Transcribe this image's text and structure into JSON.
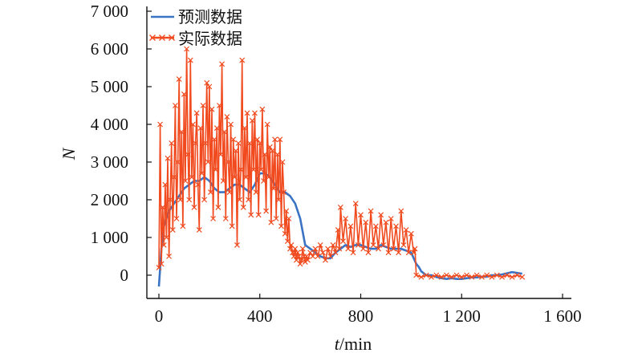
{
  "chart_data": {
    "type": "line",
    "title": "",
    "xlabel": {
      "var": "t",
      "unit": "/min"
    },
    "ylabel": "N",
    "xlim": [
      -30,
      1600
    ],
    "ylim": [
      -400,
      7000
    ],
    "x_ticks": [
      0,
      400,
      800,
      1200,
      1600
    ],
    "x_tick_labels": [
      "0",
      "400",
      "800",
      "1 200",
      "1 600"
    ],
    "y_ticks": [
      0,
      1000,
      2000,
      3000,
      4000,
      5000,
      6000,
      7000
    ],
    "y_tick_labels": [
      "0",
      "1 000",
      "2 000",
      "3 000",
      "4 000",
      "5 000",
      "6 000",
      "7 000"
    ],
    "grid": false,
    "legend_position": "top-left",
    "series": [
      {
        "name": "预测数据",
        "color": "#3a73c4",
        "marker": "none",
        "x": [
          0,
          5,
          10,
          20,
          30,
          40,
          60,
          80,
          100,
          120,
          140,
          160,
          180,
          200,
          220,
          240,
          260,
          280,
          300,
          320,
          340,
          360,
          380,
          400,
          420,
          440,
          460,
          480,
          500,
          520,
          540,
          560,
          580,
          600,
          620,
          640,
          660,
          680,
          700,
          720,
          740,
          760,
          780,
          800,
          820,
          840,
          860,
          880,
          900,
          920,
          940,
          960,
          980,
          1000,
          1010,
          1020,
          1030,
          1040,
          1060,
          1080,
          1100,
          1120,
          1140,
          1160,
          1180,
          1200,
          1220,
          1240,
          1260,
          1280,
          1300,
          1320,
          1340,
          1360,
          1380,
          1400,
          1420,
          1440
        ],
        "y": [
          -300,
          200,
          700,
          1300,
          1500,
          1700,
          1900,
          2100,
          2300,
          2400,
          2500,
          2500,
          2600,
          2500,
          2300,
          2200,
          2200,
          2300,
          2400,
          2400,
          2300,
          2200,
          2400,
          2700,
          2700,
          2600,
          2400,
          2200,
          2200,
          2100,
          1900,
          1500,
          800,
          700,
          600,
          500,
          450,
          450,
          600,
          700,
          800,
          750,
          800,
          800,
          750,
          700,
          700,
          800,
          750,
          700,
          700,
          700,
          650,
          600,
          450,
          300,
          220,
          100,
          0,
          0,
          -50,
          -80,
          -100,
          -80,
          -100,
          -100,
          -80,
          -60,
          -60,
          -40,
          -40,
          0,
          0,
          20,
          50,
          80,
          60,
          40
        ]
      },
      {
        "name": "实际数据",
        "color": "#f04a1e",
        "marker": "x",
        "x": [
          0,
          5,
          10,
          15,
          20,
          25,
          30,
          35,
          40,
          45,
          50,
          55,
          60,
          65,
          70,
          75,
          80,
          85,
          90,
          95,
          100,
          105,
          110,
          115,
          120,
          125,
          130,
          135,
          140,
          145,
          150,
          155,
          160,
          165,
          170,
          175,
          180,
          185,
          190,
          195,
          200,
          205,
          210,
          215,
          220,
          225,
          230,
          235,
          240,
          245,
          250,
          255,
          260,
          265,
          270,
          275,
          280,
          285,
          290,
          295,
          300,
          305,
          310,
          315,
          320,
          325,
          330,
          335,
          340,
          345,
          350,
          355,
          360,
          365,
          370,
          375,
          380,
          385,
          390,
          395,
          400,
          405,
          410,
          415,
          420,
          425,
          430,
          435,
          440,
          445,
          450,
          455,
          460,
          465,
          470,
          475,
          480,
          485,
          490,
          495,
          500,
          505,
          510,
          515,
          520,
          525,
          530,
          535,
          540,
          545,
          550,
          555,
          560,
          565,
          570,
          575,
          580,
          585,
          590,
          600,
          610,
          620,
          630,
          640,
          650,
          660,
          670,
          680,
          690,
          700,
          710,
          715,
          720,
          730,
          740,
          750,
          760,
          770,
          780,
          790,
          800,
          810,
          820,
          830,
          840,
          850,
          860,
          870,
          880,
          890,
          900,
          910,
          920,
          930,
          940,
          950,
          960,
          970,
          980,
          990,
          1000,
          1010,
          1015,
          1020,
          1040,
          1060,
          1080,
          1100,
          1120,
          1140,
          1160,
          1180,
          1200,
          1220,
          1240,
          1260,
          1280,
          1300,
          1320,
          1340,
          1360,
          1380,
          1400,
          1420,
          1440
        ],
        "y": [
          200,
          4000,
          300,
          1800,
          800,
          2400,
          1000,
          3100,
          500,
          2000,
          3500,
          1200,
          2600,
          4500,
          1500,
          3000,
          5200,
          2000,
          3800,
          1300,
          4800,
          2500,
          6000,
          3200,
          2000,
          5700,
          2600,
          4000,
          1800,
          3500,
          4300,
          2400,
          1200,
          3900,
          2700,
          4500,
          2000,
          3500,
          5100,
          3000,
          5000,
          2200,
          4400,
          1500,
          3600,
          2800,
          3900,
          1800,
          4500,
          3200,
          5600,
          2500,
          3800,
          1500,
          4200,
          3000,
          2200,
          4000,
          1300,
          3600,
          2600,
          3300,
          800,
          3500,
          2000,
          2800,
          5700,
          1800,
          3900,
          2600,
          4300,
          2000,
          3500,
          1600,
          4100,
          2800,
          4300,
          2200,
          3600,
          1600,
          3500,
          2800,
          4400,
          2500,
          3200,
          1700,
          4000,
          2600,
          3400,
          1400,
          3300,
          2300,
          3600,
          1500,
          3200,
          2000,
          3600,
          1300,
          3000,
          2200,
          1100,
          1700,
          900,
          1500,
          700,
          800,
          600,
          500,
          700,
          400,
          600,
          500,
          300,
          400,
          700,
          500,
          350,
          500,
          400,
          600,
          500,
          700,
          500,
          800,
          600,
          400,
          700,
          500,
          800,
          600,
          1200,
          700,
          1800,
          900,
          1500,
          700,
          1300,
          600,
          1900,
          800,
          1600,
          700,
          1400,
          600,
          1700,
          800,
          1300,
          700,
          1600,
          800,
          1400,
          600,
          1500,
          700,
          1300,
          600,
          1700,
          800,
          1200,
          600,
          1100,
          600,
          700,
          0,
          -50,
          0,
          -50,
          0,
          -50,
          0,
          -50,
          0,
          -50,
          0,
          -50,
          0,
          -50,
          0,
          -50,
          0,
          -50,
          0,
          -50,
          0,
          -50
        ]
      }
    ]
  }
}
